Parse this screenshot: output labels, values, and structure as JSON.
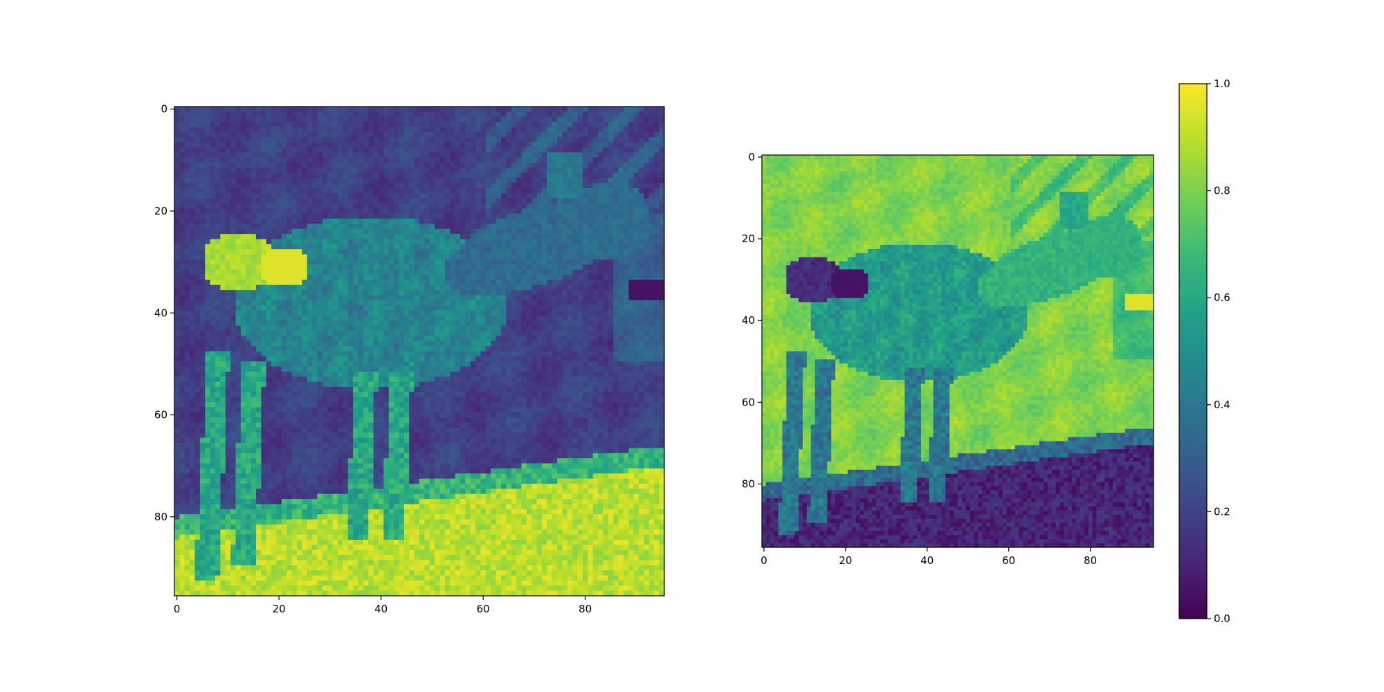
{
  "chart_data": [
    {
      "type": "heatmap",
      "name": "left-image",
      "subject": "deer grayscale image",
      "colormap": "viridis",
      "grid_size": [
        96,
        96
      ],
      "x_ticks": [
        0,
        20,
        40,
        60,
        80
      ],
      "y_ticks": [
        0,
        20,
        40,
        60,
        80
      ],
      "title": "",
      "xlabel": "",
      "ylabel": ""
    },
    {
      "type": "heatmap",
      "name": "right-image",
      "subject": "inverted deer image",
      "colormap": "viridis",
      "grid_size": [
        96,
        96
      ],
      "x_ticks": [
        0,
        20,
        40,
        60,
        80
      ],
      "y_ticks": [
        0,
        20,
        40,
        60,
        80
      ],
      "title": "",
      "xlabel": "",
      "ylabel": ""
    }
  ],
  "colorbar": {
    "range": [
      0.0,
      1.0
    ],
    "ticks": [
      0.0,
      0.2,
      0.4,
      0.6,
      0.8,
      1.0
    ],
    "tick_labels": [
      "0.0",
      "0.2",
      "0.4",
      "0.6",
      "0.8",
      "1.0"
    ]
  },
  "viridis_stops": [
    "#440154",
    "#482878",
    "#3e4989",
    "#31688e",
    "#26828e",
    "#1f9e89",
    "#35b779",
    "#6ece58",
    "#b5de2b",
    "#fde725"
  ]
}
